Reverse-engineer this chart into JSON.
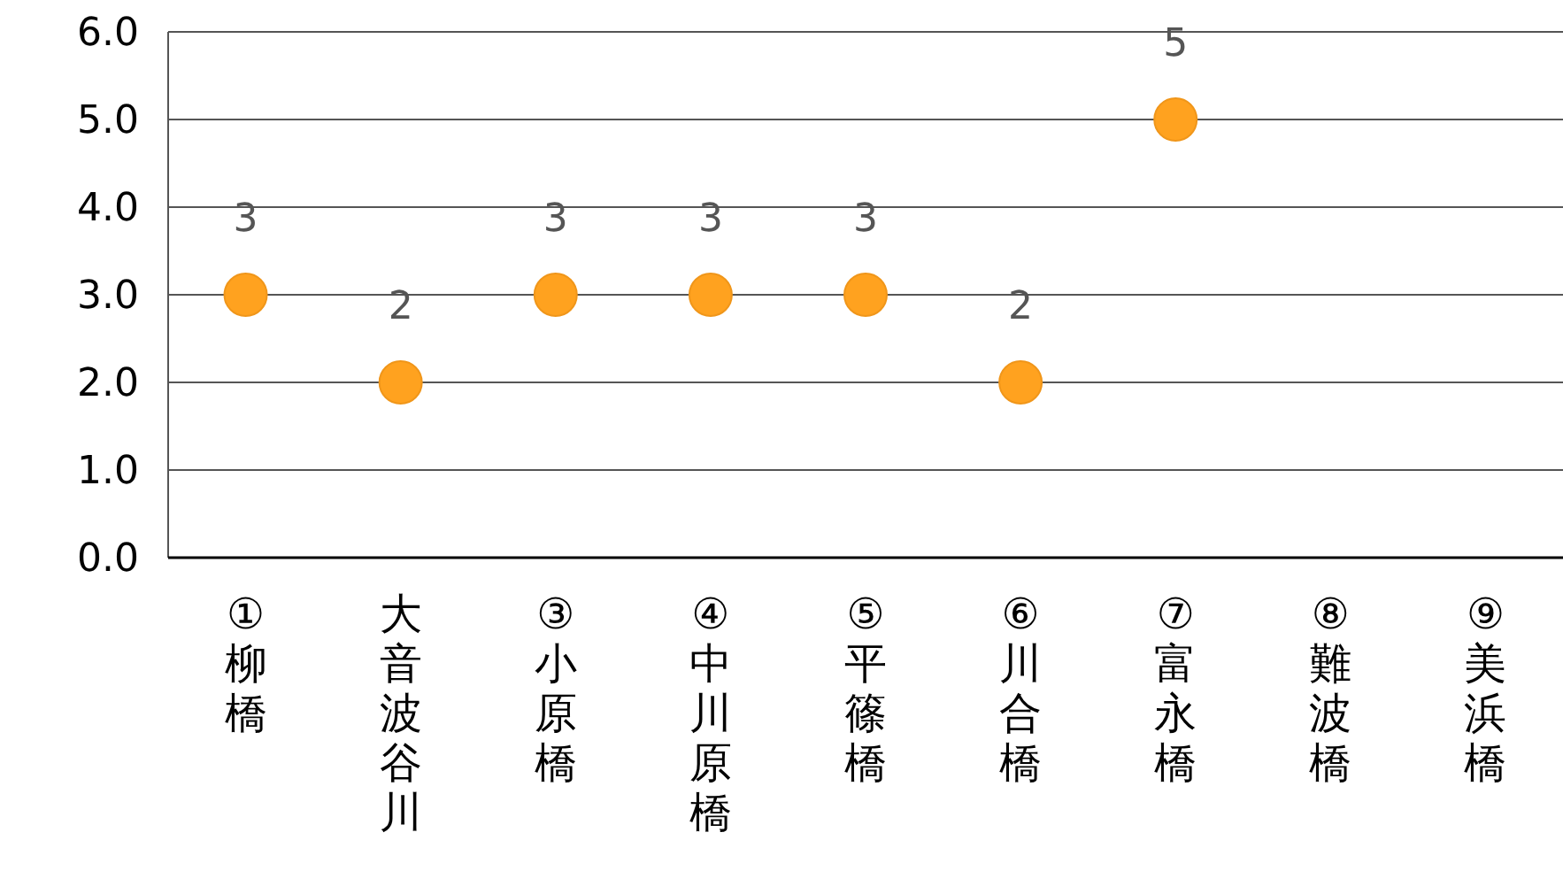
{
  "chart_data": {
    "type": "scatter",
    "categories": [
      "①柳橋",
      "大音波谷川",
      "③小原橋",
      "④中川原橋",
      "⑤平篠橋",
      "⑥川合橋",
      "⑦富永橋",
      "⑧難波橋",
      "⑨美浜橋"
    ],
    "values": [
      3,
      2,
      3,
      3,
      3,
      2,
      5,
      null,
      null
    ],
    "color": "#ffa21f",
    "ylim": [
      0,
      6
    ],
    "yticks": [
      {
        "value": 0,
        "label": "0.0"
      },
      {
        "value": 1,
        "label": "1.0"
      },
      {
        "value": 2,
        "label": "2.0"
      },
      {
        "value": 3,
        "label": "3.0"
      },
      {
        "value": 4,
        "label": "4.0"
      },
      {
        "value": 5,
        "label": "5.0"
      },
      {
        "value": 6,
        "label": "6.0"
      }
    ],
    "grid": "y",
    "marker": "circle",
    "data_labels": true
  }
}
